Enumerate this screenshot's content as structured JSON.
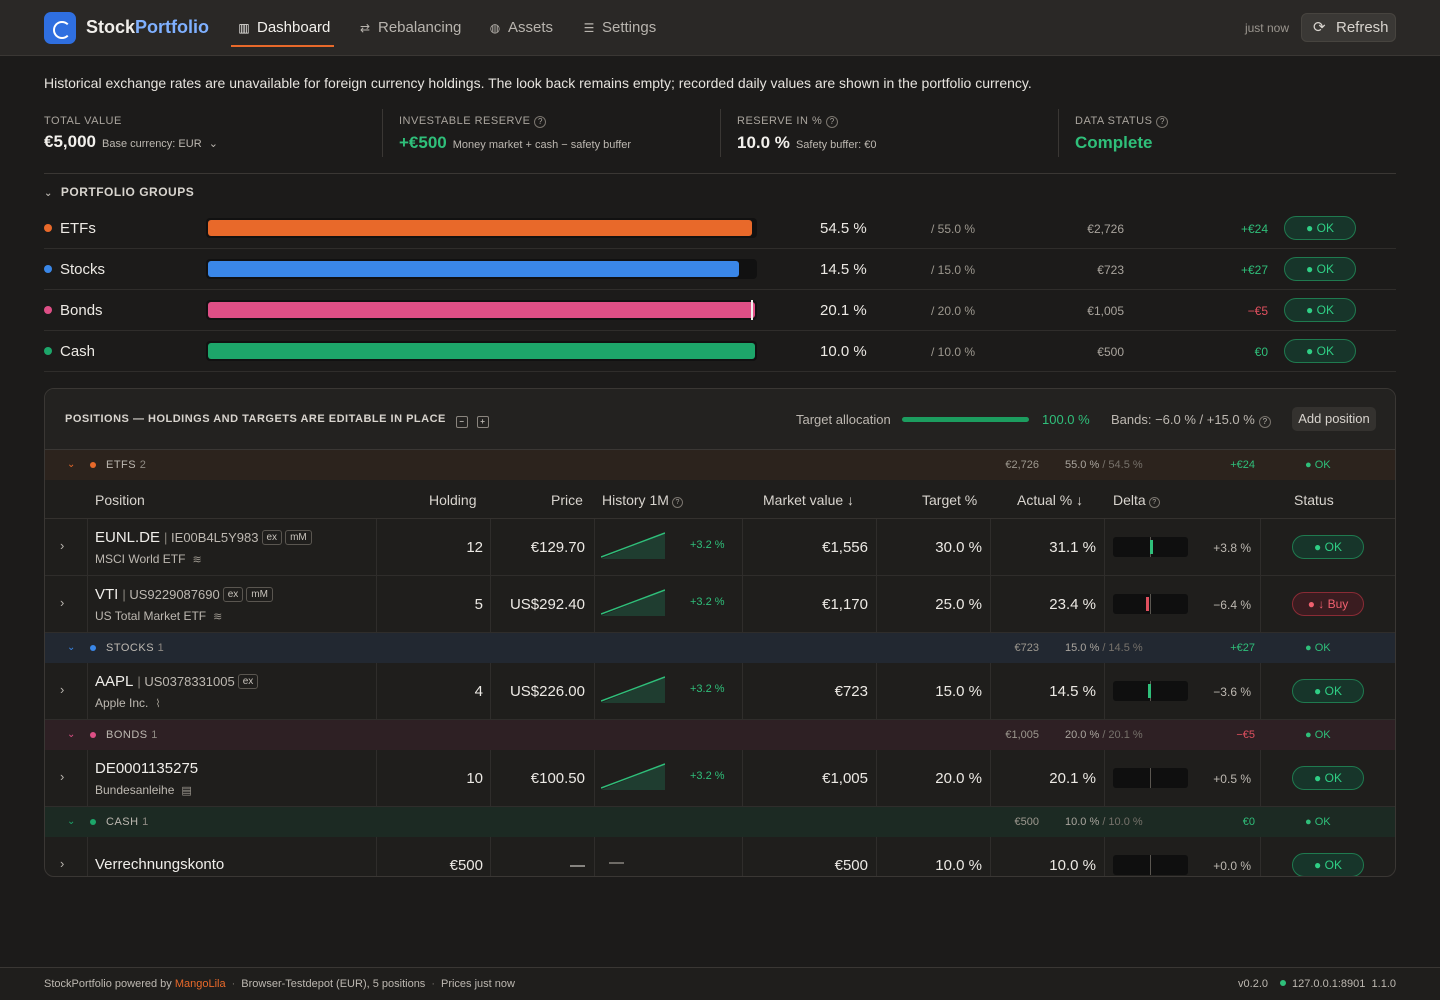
{
  "header": {
    "brand_a": "Stock",
    "brand_b": "Portfolio",
    "nav": [
      {
        "label": "Dashboard",
        "icon": "bar-chart-icon"
      },
      {
        "label": "Rebalancing",
        "icon": "swap-icon"
      },
      {
        "label": "Assets",
        "icon": "globe-icon"
      },
      {
        "label": "Settings",
        "icon": "sliders-icon"
      }
    ],
    "updated": "just now",
    "refresh_label": "Refresh"
  },
  "notice": "Historical exchange rates are unavailable for foreign currency holdings. The look back remains empty; recorded daily values are shown in the portfolio currency.",
  "kpis": {
    "total": {
      "label": "TOTAL VALUE",
      "value": "€5,000",
      "sub": "Base currency: EUR"
    },
    "reserve": {
      "label": "INVESTABLE RESERVE",
      "value": "+€500",
      "sub": "Money market + cash − safety buffer"
    },
    "reserve_pct": {
      "label": "RESERVE IN %",
      "value": "10.0 %",
      "sub": "Safety buffer: €0"
    },
    "status": {
      "label": "DATA STATUS",
      "value": "Complete"
    }
  },
  "groups": {
    "title": "PORTFOLIO GROUPS",
    "items": [
      {
        "name": "ETFs",
        "color": "#e8692a",
        "actual": "54.5 %",
        "target": "/ 55.0 %",
        "value": "€2,726",
        "delta": "+€24",
        "status": "● OK",
        "fill": 0.995
      },
      {
        "name": "Stocks",
        "color": "#3a87e8",
        "actual": "14.5 %",
        "target": "/ 15.0 %",
        "value": "€723",
        "delta": "+€27",
        "status": "● OK",
        "fill": 0.97
      },
      {
        "name": "Bonds",
        "color": "#de4f86",
        "actual": "20.1 %",
        "target": "/ 20.0 %",
        "value": "€1,005",
        "delta": "−€5",
        "status": "● OK",
        "fill": 1.0
      },
      {
        "name": "Cash",
        "color": "#1da66a",
        "actual": "10.0 %",
        "target": "/ 10.0 %",
        "value": "€500",
        "delta": "€0",
        "status": "● OK",
        "fill": 1.0
      }
    ]
  },
  "positions": {
    "title": "POSITIONS — HOLDINGS AND TARGETS ARE EDITABLE IN PLACE",
    "target_label": "Target allocation",
    "target_pct": "100.0 %",
    "bands": "Bands: −6.0 % / +15.0 %",
    "add_label": "Add position",
    "columns": {
      "position": "Position",
      "holding": "Holding",
      "price": "Price",
      "history": "History 1M",
      "market": "Market value ↓",
      "target": "Target %",
      "actual": "Actual % ↓",
      "delta": "Delta",
      "status": "Status"
    },
    "sections": {
      "etfs": {
        "name": "ETFS",
        "count": "2",
        "value": "€2,726",
        "pct": "55.0 %",
        "pct2": "/ 54.5 %",
        "delta": "+€24",
        "status": "● OK"
      },
      "stocks": {
        "name": "STOCKS",
        "count": "1",
        "value": "€723",
        "pct": "15.0 %",
        "pct2": "/ 14.5 %",
        "delta": "+€27",
        "status": "● OK"
      },
      "bonds": {
        "name": "BONDS",
        "count": "1",
        "value": "€1,005",
        "pct": "20.0 %",
        "pct2": "/ 20.1 %",
        "delta": "−€5",
        "status": "● OK"
      },
      "cash": {
        "name": "CASH",
        "count": "1",
        "value": "€500",
        "pct": "10.0 %",
        "pct2": "/ 10.0 %",
        "delta": "€0",
        "status": "● OK"
      }
    },
    "rows": {
      "eunl": {
        "ticker": "EUNL.DE",
        "isin": "IE00B4L5Y983",
        "tags": [
          "ex",
          "mM"
        ],
        "name": "MSCI World ETF",
        "holding": "12",
        "price": "€129.70",
        "spark": "+3.2 %",
        "market": "€1,556",
        "target": "30.0 %",
        "actual": "31.1 %",
        "delta": "+3.8 %",
        "status": "● OK"
      },
      "vti": {
        "ticker": "VTI",
        "isin": "US9229087690",
        "tags": [
          "ex",
          "mM"
        ],
        "name": "US Total Market ETF",
        "holding": "5",
        "price": "US$292.40",
        "spark": "+3.2 %",
        "market": "€1,170",
        "target": "25.0 %",
        "actual": "23.4 %",
        "delta": "−6.4 %",
        "status": "● ↓ Buy"
      },
      "aapl": {
        "ticker": "AAPL",
        "isin": "US0378331005",
        "tags": [
          "ex"
        ],
        "name": "Apple Inc.",
        "holding": "4",
        "price": "US$226.00",
        "spark": "+3.2 %",
        "market": "€723",
        "target": "15.0 %",
        "actual": "14.5 %",
        "delta": "−3.6 %",
        "status": "● OK"
      },
      "bund": {
        "ticker": "DE0001135275",
        "name": "Bundesanleihe",
        "holding": "10",
        "price": "€100.50",
        "spark": "+3.2 %",
        "market": "€1,005",
        "target": "20.0 %",
        "actual": "20.1 %",
        "delta": "+0.5 %",
        "status": "● OK"
      },
      "cash": {
        "ticker": "Verrechnungskonto",
        "holding": "€500",
        "price": "—",
        "spark": "—",
        "market": "€500",
        "target": "10.0 %",
        "actual": "10.0 %",
        "delta": "+0.0 %",
        "status": "● OK"
      }
    }
  },
  "footer": {
    "app": "StockPortfolio powered by",
    "mango": "MangoLila",
    "depot": "Browser-Testdepot (EUR), 5 positions",
    "prices": "Prices just now",
    "version": "v0.2.0",
    "host": "127.0.0.1:8901",
    "api": "1.1.0"
  }
}
